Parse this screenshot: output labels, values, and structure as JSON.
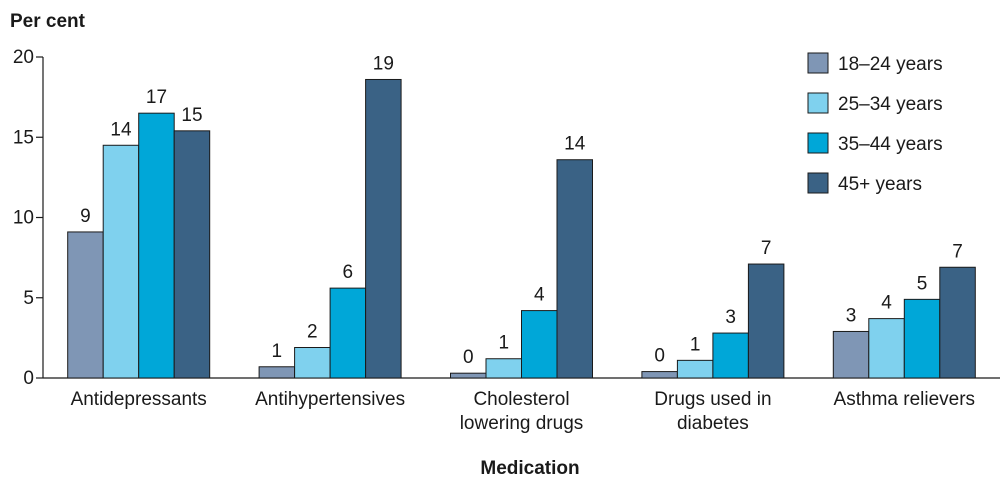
{
  "chart_data": {
    "type": "bar",
    "ylabel": "Per cent",
    "xlabel": "Medication",
    "ylim": [
      0,
      20
    ],
    "yticks": [
      0,
      5,
      10,
      15,
      20
    ],
    "grid": false,
    "legend_position": "top-right",
    "categories": [
      [
        "Antidepressants"
      ],
      [
        "Antihypertensives"
      ],
      [
        "Cholesterol",
        "lowering drugs"
      ],
      [
        "Drugs used in",
        "diabetes"
      ],
      [
        "Asthma relievers"
      ]
    ],
    "series": [
      {
        "name": "18–24 years",
        "color": "#7f96b5",
        "values": [
          9.1,
          0.7,
          0.3,
          0.4,
          2.9
        ],
        "labels": [
          "9",
          "1",
          "0",
          "0",
          "3"
        ]
      },
      {
        "name": "25–34 years",
        "color": "#7fd1ee",
        "values": [
          14.5,
          1.9,
          1.2,
          1.1,
          3.7
        ],
        "labels": [
          "14",
          "2",
          "1",
          "1",
          "4"
        ]
      },
      {
        "name": "35–44 years",
        "color": "#00a7d8",
        "values": [
          16.5,
          5.6,
          4.2,
          2.8,
          4.9
        ],
        "labels": [
          "17",
          "6",
          "4",
          "3",
          "5"
        ]
      },
      {
        "name": "45+ years",
        "color": "#3a6285",
        "values": [
          15.4,
          18.6,
          13.6,
          7.1,
          6.9
        ],
        "labels": [
          "15",
          "19",
          "14",
          "7",
          "7"
        ]
      }
    ]
  }
}
